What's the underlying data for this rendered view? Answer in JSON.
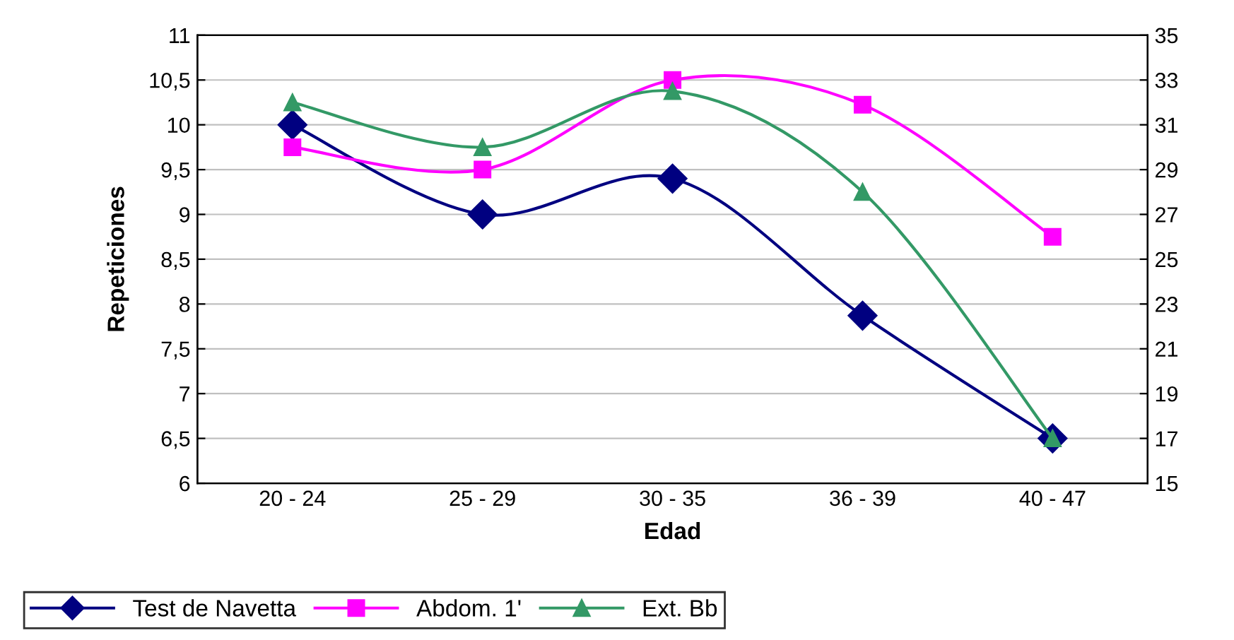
{
  "chart_data": {
    "type": "line",
    "xlabel": "Edad",
    "ylabel": "Repeticiones",
    "categories": [
      "20 - 24",
      "25 - 29",
      "30 - 35",
      "36 - 39",
      "40 - 47"
    ],
    "series": [
      {
        "name": "Test de Navetta",
        "color": "#000080",
        "marker": "diamond",
        "values": [
          10,
          9,
          9.4,
          7.87,
          6.5
        ]
      },
      {
        "name": "Abdom. 1'",
        "color": "#ff00ff",
        "marker": "square",
        "axis": "y2",
        "values": [
          30,
          29,
          33,
          31.9,
          26
        ]
      },
      {
        "name": "Ext. Bb",
        "color": "#339966",
        "marker": "triangle",
        "axis": "y2",
        "values": [
          32,
          30,
          32.5,
          28,
          17
        ]
      }
    ],
    "ylim": [
      6,
      11
    ],
    "yticks": [
      6,
      {
        "value": 6.5,
        "label": "6,5"
      },
      7,
      {
        "value": 7.5,
        "label": "7,5"
      },
      8,
      {
        "value": 8.5,
        "label": "8,5"
      },
      9,
      {
        "value": 9.5,
        "label": "9,5"
      },
      10,
      {
        "value": 10.5,
        "label": "10,5"
      },
      11
    ],
    "y2lim": [
      15,
      35
    ],
    "y2ticks": [
      15,
      17,
      19,
      21,
      23,
      25,
      27,
      29,
      31,
      33,
      35
    ],
    "grid": "y",
    "legend": "bottom left",
    "line_style": "solid"
  }
}
